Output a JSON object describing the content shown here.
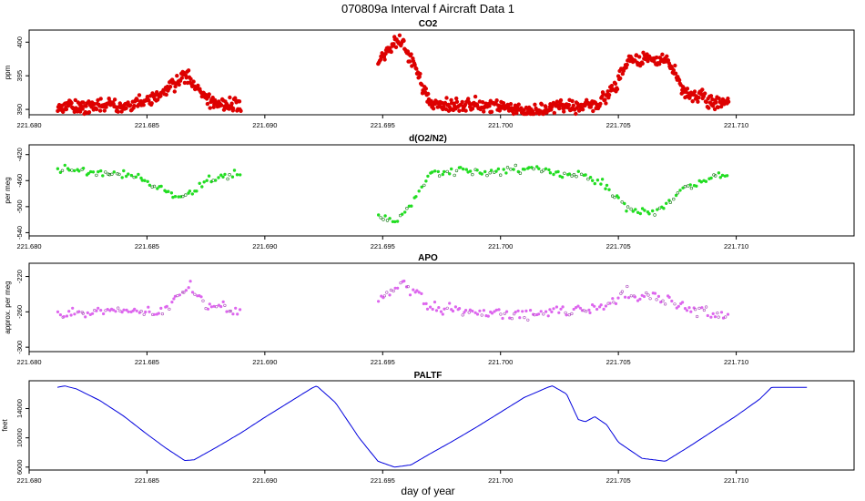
{
  "figure": {
    "title": "070809a   Interval f Aircraft Data 1",
    "xlabel": "day of year"
  },
  "chart_data": [
    {
      "type": "scatter",
      "title": "CO2",
      "ylabel": "ppm",
      "color": "#dd0000",
      "xlim": [
        221.68,
        221.715
      ],
      "ylim": [
        389.2,
        401.8
      ],
      "xticks": [
        "221.680",
        "221.685",
        "221.690",
        "221.695",
        "221.700",
        "221.705",
        "221.710"
      ],
      "yticks": [
        "390",
        "395",
        "400"
      ],
      "segments": [
        {
          "x": [
            221.6812,
            221.6825,
            221.6845,
            221.6855,
            221.686,
            221.6867,
            221.6873,
            221.688,
            221.689
          ],
          "y": [
            390.2,
            390.4,
            390.7,
            391.5,
            393.5,
            395.0,
            392.5,
            390.7,
            390.5
          ]
        },
        {
          "x": [
            221.6948,
            221.6957,
            221.6963,
            221.697,
            221.6985,
            221.7,
            221.7012,
            221.7028,
            221.7042,
            221.7048,
            221.7054,
            221.7065,
            221.7072,
            221.7078,
            221.709,
            221.7097
          ],
          "y": [
            397.0,
            400.8,
            396.5,
            390.8,
            390.7,
            390.5,
            389.6,
            390.4,
            390.8,
            393.0,
            397.5,
            397.5,
            396.8,
            392.5,
            391.2,
            390.7
          ]
        }
      ]
    },
    {
      "type": "scatter",
      "title": "d(O2/N2)",
      "ylabel": "per meg",
      "color": "#22dd22",
      "xlim": [
        221.68,
        221.715
      ],
      "ylim": [
        -545,
        -405
      ],
      "xticks": [
        "221.680",
        "221.685",
        "221.690",
        "221.695",
        "221.700",
        "221.705",
        "221.710"
      ],
      "yticks": [
        "-540",
        "-500",
        "-460",
        "-420"
      ],
      "segments": [
        {
          "x": [
            221.6812,
            221.6825,
            221.6845,
            221.6855,
            221.6865,
            221.6875,
            221.689
          ],
          "y": [
            -440,
            -445,
            -452,
            -470,
            -490,
            -460,
            -448
          ]
        },
        {
          "x": [
            221.6948,
            221.6955,
            221.6962,
            221.697,
            221.6985,
            221.7,
            221.7012,
            221.7028,
            221.7042,
            221.7048,
            221.7054,
            221.7065,
            221.7072,
            221.7078,
            221.709,
            221.7097
          ],
          "y": [
            -510,
            -525,
            -500,
            -450,
            -445,
            -445,
            -440,
            -450,
            -458,
            -480,
            -505,
            -510,
            -490,
            -470,
            -455,
            -455
          ]
        }
      ]
    },
    {
      "type": "scatter",
      "title": "APO",
      "ylabel": "approx. per meg",
      "color": "#dd66ee",
      "xlim": [
        221.68,
        221.715
      ],
      "ylim": [
        -305,
        -205
      ],
      "xticks": [
        "221.680",
        "221.685",
        "221.690",
        "221.695",
        "221.700",
        "221.705",
        "221.710"
      ],
      "yticks": [
        "-300",
        "-260",
        "-220"
      ],
      "segments": [
        {
          "x": [
            221.6812,
            221.6825,
            221.6845,
            221.6855,
            221.6862,
            221.6868,
            221.6875,
            221.689
          ],
          "y": [
            -262,
            -260,
            -258,
            -262,
            -245,
            -230,
            -252,
            -260
          ]
        },
        {
          "x": [
            221.6948,
            221.6957,
            221.6965,
            221.697,
            221.6985,
            221.7,
            221.7012,
            221.7028,
            221.7042,
            221.7048,
            221.7054,
            221.7065,
            221.7072,
            221.7078,
            221.709,
            221.7097
          ],
          "y": [
            -248,
            -228,
            -240,
            -255,
            -260,
            -262,
            -262,
            -260,
            -255,
            -248,
            -238,
            -243,
            -248,
            -255,
            -262,
            -266
          ]
        }
      ]
    },
    {
      "type": "line",
      "title": "PALTF",
      "ylabel": "feet",
      "color": "#0000dd",
      "xlim": [
        221.68,
        221.715
      ],
      "ylim": [
        5600,
        17800
      ],
      "xticks": [
        "221.680",
        "221.685",
        "221.690",
        "221.695",
        "221.700",
        "221.705",
        "221.710"
      ],
      "yticks": [
        "6000",
        "10000",
        "14000"
      ],
      "segments": [
        {
          "x": [
            221.6812,
            221.6815,
            221.682,
            221.683,
            221.684,
            221.685,
            221.6858,
            221.6866,
            221.687,
            221.688,
            221.689,
            221.69,
            221.691,
            221.692,
            221.6922,
            221.693,
            221.694,
            221.6948,
            221.6955,
            221.6962,
            221.697,
            221.698,
            221.699,
            221.7,
            221.701,
            221.702,
            221.7022,
            221.7028,
            221.7033,
            221.7036,
            221.704,
            221.7045,
            221.705,
            221.706,
            221.707,
            221.708,
            221.709,
            221.71,
            221.711,
            221.7115,
            221.713
          ],
          "y": [
            16900,
            17100,
            16700,
            15100,
            13000,
            10500,
            8600,
            6900,
            7000,
            8800,
            10700,
            12800,
            14800,
            16800,
            17100,
            14800,
            10000,
            6800,
            6000,
            6300,
            7800,
            9600,
            11500,
            13500,
            15500,
            16900,
            17100,
            16000,
            12500,
            12200,
            12900,
            11800,
            9400,
            7200,
            6800,
            8800,
            10900,
            13000,
            15300,
            16900,
            16900
          ]
        }
      ]
    }
  ]
}
